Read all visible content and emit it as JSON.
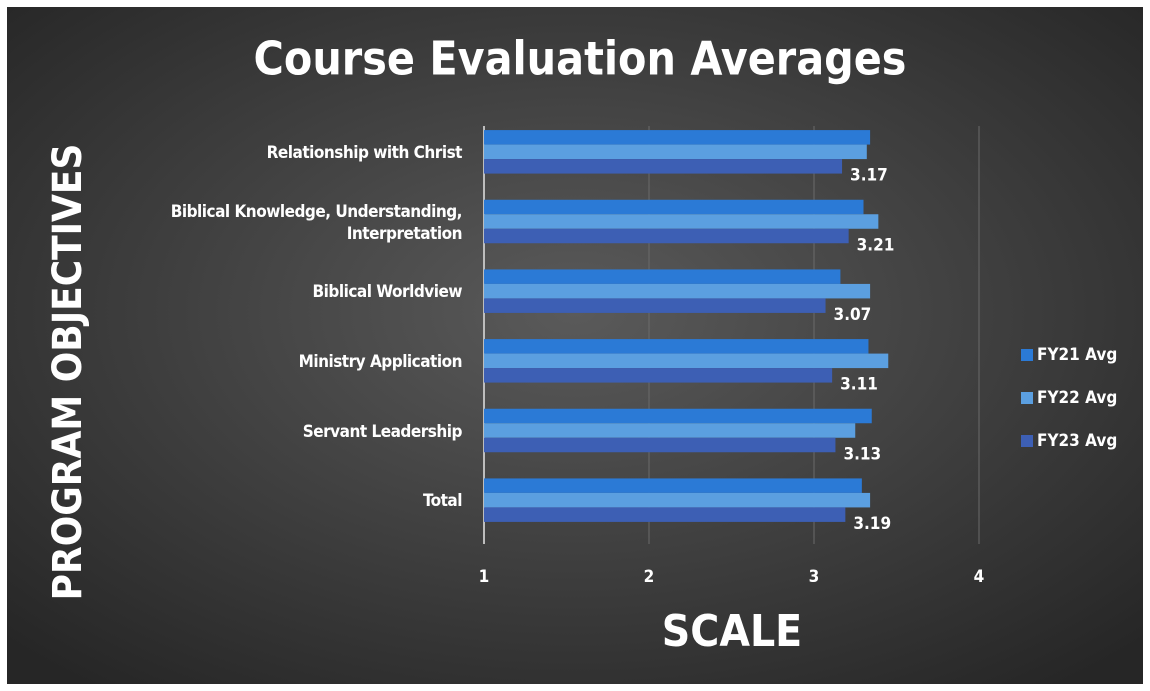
{
  "chart_data": {
    "type": "hbar",
    "title": "Course Evaluation Averages",
    "x_label": "SCALE",
    "y_label": "PROGRAM OBJECTIVES",
    "categories": [
      "Relationship with Christ",
      "Biblical Knowledge, Understanding, Interpretation",
      "Biblical Worldview",
      "Ministry Application",
      "Servant Leadership",
      "Total"
    ],
    "series": [
      {
        "name": "FY21 Avg",
        "color": "#2b7ad6",
        "values": [
          3.34,
          3.3,
          3.16,
          3.33,
          3.35,
          3.29
        ]
      },
      {
        "name": "FY22 Avg",
        "color": "#5b9fe0",
        "values": [
          3.32,
          3.39,
          3.34,
          3.45,
          3.25,
          3.34
        ]
      },
      {
        "name": "FY23 Avg",
        "color": "#3d5fb4",
        "values": [
          3.17,
          3.21,
          3.07,
          3.11,
          3.13,
          3.19
        ],
        "data_labels": true
      }
    ],
    "xlim": [
      1,
      4
    ],
    "xticks": [
      1,
      2,
      3,
      4
    ],
    "grid": true,
    "legend": "right"
  }
}
